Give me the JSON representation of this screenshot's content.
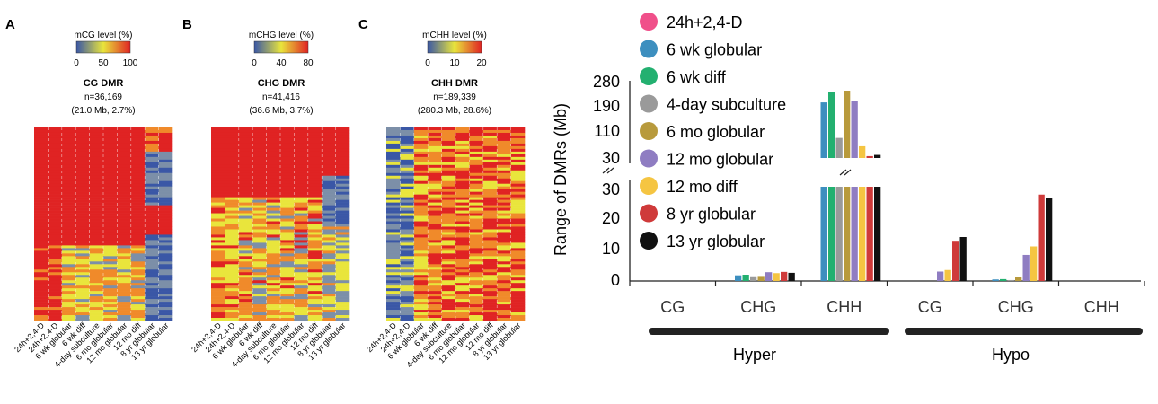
{
  "heatmap_columns": [
    "24h+2,4-D",
    "24h+2,4-D",
    "6 wk globular",
    "6 wk diff",
    "4-day subculture",
    "6 mo globular",
    "12 mo globular",
    "12 mo diff",
    "8 yr globular",
    "13 yr globular"
  ],
  "panels": [
    {
      "letter": "A",
      "scale_title": "mCG level (%)",
      "ticks": [
        "0",
        "50",
        "100"
      ],
      "title": "CG DMR",
      "count": "n=36,169",
      "size": "(21.0 Mb, 2.7%)"
    },
    {
      "letter": "B",
      "scale_title": "mCHG level (%)",
      "ticks": [
        "0",
        "40",
        "80"
      ],
      "title": "CHG DMR",
      "count": "n=41,416",
      "size": "(36.6 Mb, 3.7%)"
    },
    {
      "letter": "C",
      "scale_title": "mCHH level (%)",
      "ticks": [
        "0",
        "10",
        "20"
      ],
      "title": "CHH DMR",
      "count": "n=189,339",
      "size": "(280.3 Mb, 28.6%)"
    }
  ],
  "colors": {
    "heat_low": "#3a57a6",
    "heat_mid": "#e9e53c",
    "heat_high": "#e02323",
    "series": [
      "#f0508a",
      "#3d8fbf",
      "#23b070",
      "#9a9a9a",
      "#b89a3c",
      "#8f7dc2",
      "#f5c542",
      "#cf3a3a",
      "#111111"
    ]
  },
  "chart_data": {
    "type": "bar",
    "ylabel": "Range of DMRs (Mb)",
    "y_ticks_lower": [
      "0",
      "10",
      "20",
      "30"
    ],
    "y_ticks_upper": [
      "30",
      "110",
      "190",
      "280"
    ],
    "ylim_lower": [
      0,
      30
    ],
    "ylim_upper": [
      30,
      280
    ],
    "categories": [
      "CG",
      "CHG",
      "CHH",
      "CG",
      "CHG",
      "CHH"
    ],
    "groups": [
      "Hyper",
      "Hypo"
    ],
    "series": [
      {
        "name": "24h+2,4-D",
        "values": [
          0,
          0,
          0,
          0,
          0,
          0
        ]
      },
      {
        "name": "6 wk globular",
        "values": [
          0,
          1.8,
          210,
          0,
          0.5,
          0
        ]
      },
      {
        "name": "6 wk diff",
        "values": [
          0,
          2.0,
          245,
          0,
          0.6,
          0
        ]
      },
      {
        "name": "4-day subculture",
        "values": [
          0,
          1.5,
          95,
          0,
          0.3,
          0
        ]
      },
      {
        "name": "6 mo globular",
        "values": [
          0,
          1.6,
          248,
          0,
          1.4,
          0
        ]
      },
      {
        "name": "12 mo globular",
        "values": [
          0,
          2.8,
          215,
          3.0,
          8.3,
          0
        ]
      },
      {
        "name": "12 mo diff",
        "values": [
          0,
          2.5,
          68,
          3.5,
          11.0,
          0
        ]
      },
      {
        "name": "8 yr globular",
        "values": [
          0,
          2.9,
          36,
          12.8,
          27.5,
          0
        ]
      },
      {
        "name": "13 yr globular",
        "values": [
          0,
          2.6,
          40,
          14.0,
          26.5,
          0
        ]
      }
    ]
  }
}
